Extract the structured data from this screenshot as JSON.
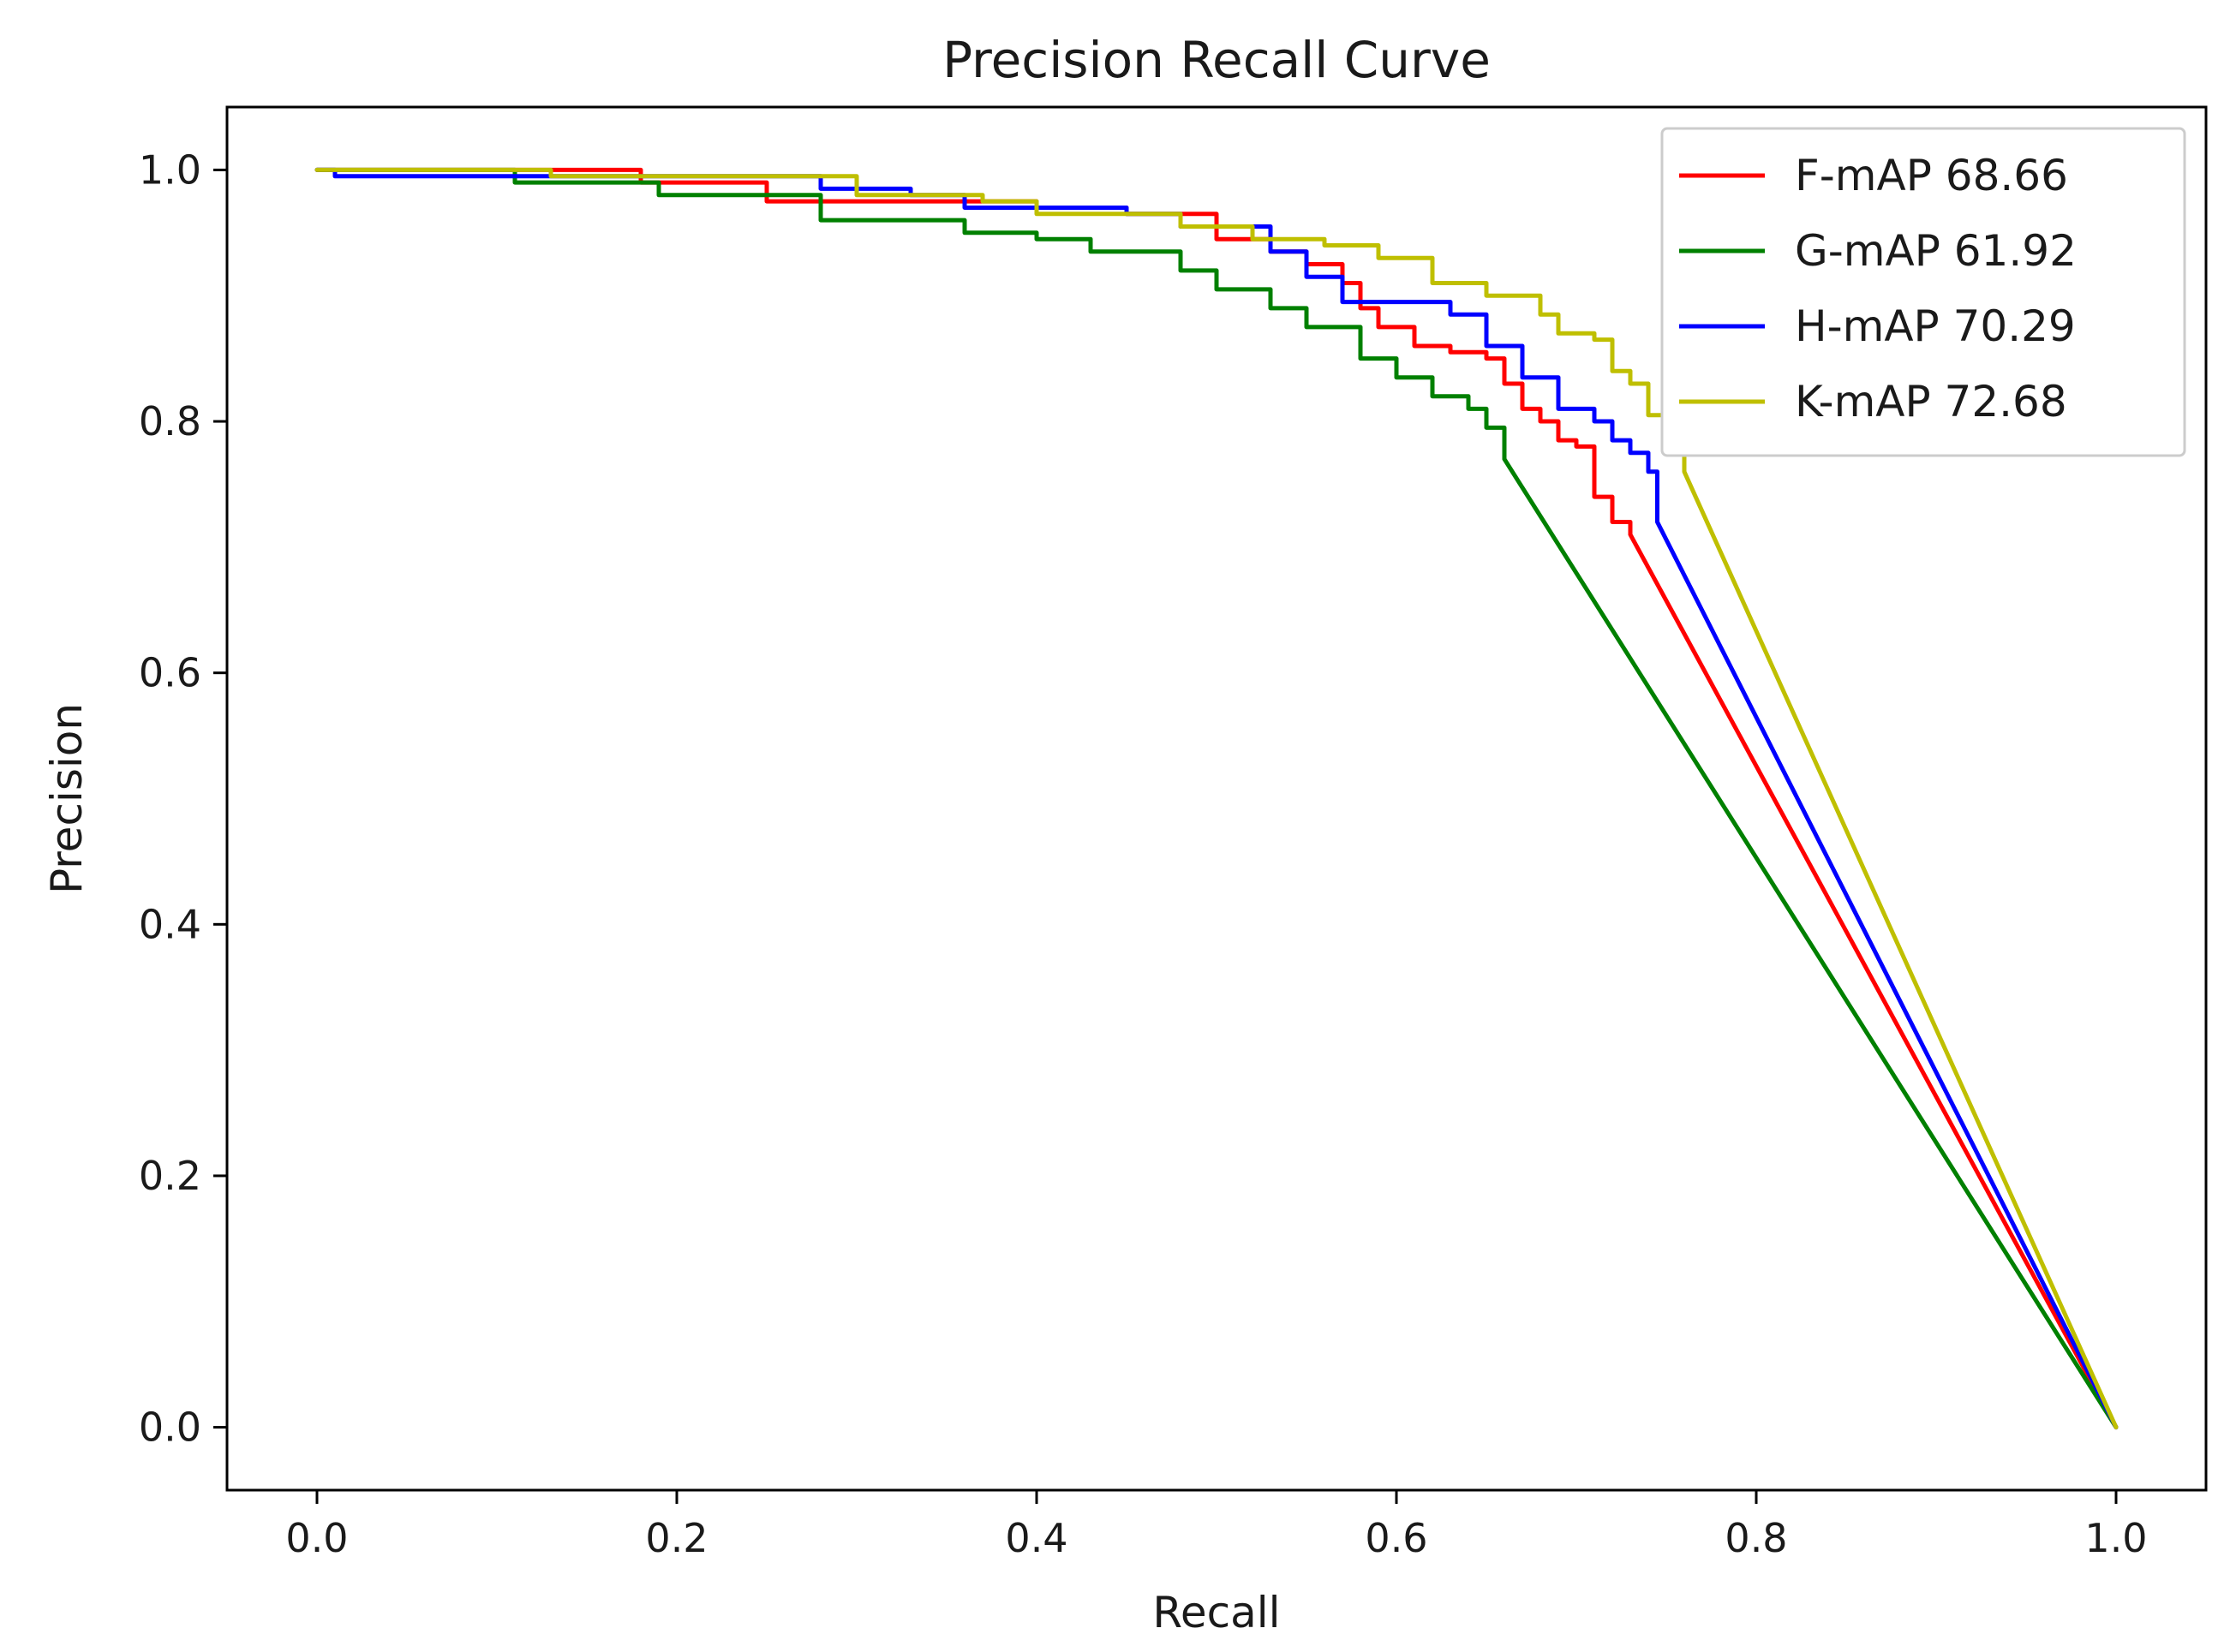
{
  "chart_data": {
    "type": "line",
    "title": "Precision Recall Curve",
    "xlabel": "Recall",
    "ylabel": "Precision",
    "xlim": [
      -0.05,
      1.05
    ],
    "ylim": [
      -0.05,
      1.05
    ],
    "xticks": [
      0.0,
      0.2,
      0.4,
      0.6,
      0.8,
      1.0
    ],
    "yticks": [
      0.0,
      0.2,
      0.4,
      0.6,
      0.8,
      1.0
    ],
    "xtick_labels": [
      "0.0",
      "0.2",
      "0.4",
      "0.6",
      "0.8",
      "1.0"
    ],
    "ytick_labels": [
      "0.0",
      "0.2",
      "0.4",
      "0.6",
      "0.8",
      "1.0"
    ],
    "grid": false,
    "legend_position": "top-right",
    "series": [
      {
        "name": "F-mAP 68.66",
        "color": "#ff0000",
        "x": [
          0.0,
          0.13,
          0.17,
          0.18,
          0.25,
          0.3,
          0.4,
          0.45,
          0.5,
          0.53,
          0.55,
          0.57,
          0.58,
          0.59,
          0.61,
          0.63,
          0.65,
          0.66,
          0.67,
          0.68,
          0.69,
          0.7,
          0.71,
          0.72,
          0.73,
          1.0
        ],
        "y": [
          1.0,
          1.0,
          1.0,
          0.99,
          0.975,
          0.975,
          0.97,
          0.965,
          0.945,
          0.935,
          0.925,
          0.91,
          0.89,
          0.875,
          0.86,
          0.855,
          0.85,
          0.83,
          0.81,
          0.8,
          0.785,
          0.78,
          0.74,
          0.72,
          0.71,
          0.0
        ]
      },
      {
        "name": "G-mAP 61.92",
        "color": "#008000",
        "x": [
          0.0,
          0.11,
          0.19,
          0.28,
          0.36,
          0.4,
          0.43,
          0.48,
          0.5,
          0.53,
          0.55,
          0.58,
          0.6,
          0.62,
          0.64,
          0.65,
          0.66,
          1.0
        ],
        "y": [
          1.0,
          0.99,
          0.98,
          0.96,
          0.95,
          0.945,
          0.935,
          0.92,
          0.905,
          0.89,
          0.875,
          0.85,
          0.835,
          0.82,
          0.81,
          0.795,
          0.77,
          0.0
        ]
      },
      {
        "name": "H-mAP 70.29",
        "color": "#0000ff",
        "x": [
          0.0,
          0.01,
          0.13,
          0.28,
          0.33,
          0.36,
          0.4,
          0.45,
          0.48,
          0.53,
          0.55,
          0.57,
          0.6,
          0.63,
          0.65,
          0.67,
          0.69,
          0.71,
          0.72,
          0.73,
          0.74,
          0.745,
          1.0
        ],
        "y": [
          1.0,
          0.995,
          0.995,
          0.985,
          0.98,
          0.97,
          0.97,
          0.965,
          0.955,
          0.935,
          0.915,
          0.895,
          0.895,
          0.885,
          0.86,
          0.835,
          0.81,
          0.8,
          0.785,
          0.775,
          0.76,
          0.72,
          0.0
        ]
      },
      {
        "name": "K-mAP 72.68",
        "color": "#bfbf00",
        "x": [
          0.0,
          0.13,
          0.3,
          0.37,
          0.4,
          0.43,
          0.48,
          0.52,
          0.56,
          0.59,
          0.62,
          0.65,
          0.68,
          0.69,
          0.71,
          0.72,
          0.73,
          0.74,
          0.75,
          0.76,
          1.0
        ],
        "y": [
          1.0,
          0.995,
          0.98,
          0.975,
          0.965,
          0.965,
          0.955,
          0.945,
          0.94,
          0.93,
          0.91,
          0.9,
          0.885,
          0.87,
          0.865,
          0.84,
          0.83,
          0.805,
          0.795,
          0.76,
          0.0
        ]
      }
    ]
  }
}
